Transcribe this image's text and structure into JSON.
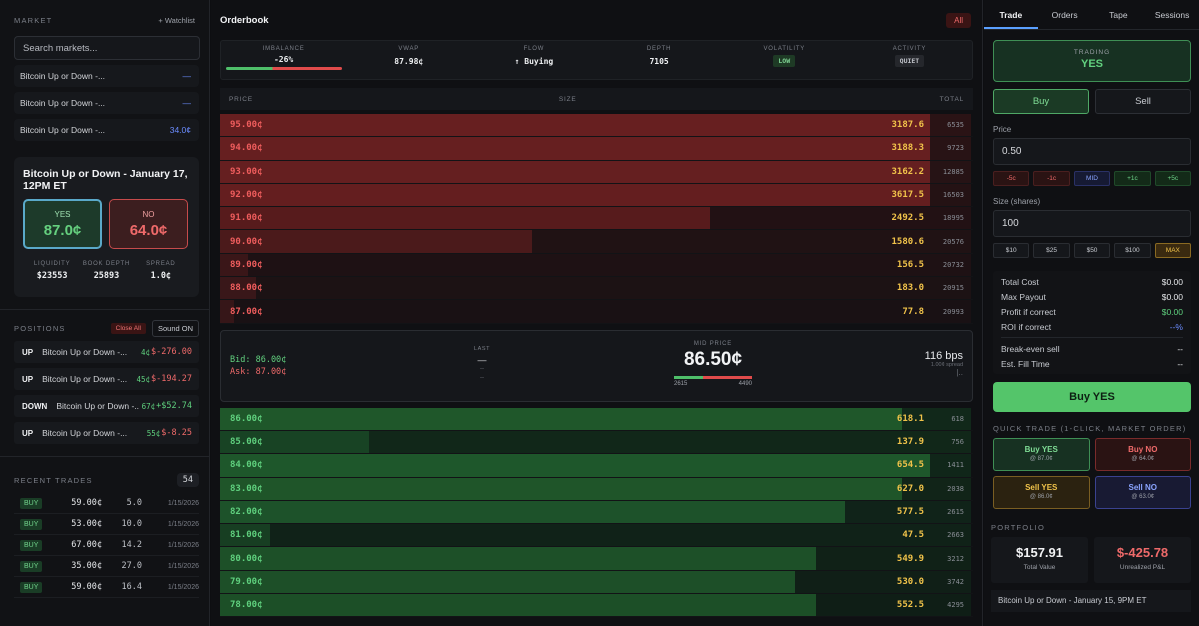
{
  "left": {
    "market_label": "MARKET",
    "watchlist": "+ Watchlist",
    "search_placeholder": "Search markets...",
    "markets": [
      {
        "name": "Bitcoin Up or Down -...",
        "price": "—"
      },
      {
        "name": "Bitcoin Up or Down -...",
        "price": "—"
      },
      {
        "name": "Bitcoin Up or Down -...",
        "price": "34.0¢"
      }
    ],
    "card": {
      "title": "Bitcoin Up or Down - January 17, 12PM ET",
      "yes_label": "YES",
      "yes_price": "87.0¢",
      "no_label": "NO",
      "no_price": "64.0¢",
      "stats": [
        {
          "k": "LIQUIDITY",
          "v": "$23553"
        },
        {
          "k": "BOOK DEPTH",
          "v": "25893"
        },
        {
          "k": "SPREAD",
          "v": "1.0¢"
        }
      ]
    },
    "positions_label": "POSITIONS",
    "close_all": "Close All",
    "sound": "Sound ON",
    "positions": [
      {
        "side": "UP",
        "name": "Bitcoin Up or Down -...",
        "price": "4¢",
        "pnl": "$-276.00",
        "neg": true
      },
      {
        "side": "UP",
        "name": "Bitcoin Up or Down -...",
        "price": "45¢",
        "pnl": "$-194.27",
        "neg": true
      },
      {
        "side": "DOWN",
        "name": "Bitcoin Up or Down -...",
        "price": "67¢",
        "pnl": "+$52.74",
        "neg": false
      },
      {
        "side": "UP",
        "name": "Bitcoin Up or Down -...",
        "price": "55¢",
        "pnl": "$-8.25",
        "neg": true
      }
    ],
    "recent_label": "RECENT TRADES",
    "recent_count": "54",
    "trades": [
      {
        "side": "BUY",
        "price": "59.00¢",
        "qty": "5.0",
        "date": "1/15/2026"
      },
      {
        "side": "BUY",
        "price": "53.00¢",
        "qty": "10.0",
        "date": "1/15/2026"
      },
      {
        "side": "BUY",
        "price": "67.00¢",
        "qty": "14.2",
        "date": "1/15/2026"
      },
      {
        "side": "BUY",
        "price": "35.00¢",
        "qty": "27.0",
        "date": "1/15/2026"
      },
      {
        "side": "BUY",
        "price": "59.00¢",
        "qty": "16.4",
        "date": "1/15/2026"
      }
    ]
  },
  "center": {
    "title": "Orderbook",
    "all": "All",
    "metrics": [
      {
        "k": "IMBALANCE",
        "v": "-26%"
      },
      {
        "k": "VWAP",
        "v": "87.98¢"
      },
      {
        "k": "FLOW",
        "v": "Buying"
      },
      {
        "k": "DEPTH",
        "v": "7105"
      },
      {
        "k": "VOLATILITY",
        "v": "LOW"
      },
      {
        "k": "ACTIVITY",
        "v": "QUIET"
      }
    ],
    "cols": {
      "price": "PRICE",
      "size": "SIZE",
      "total": "TOTAL"
    },
    "asks": [
      {
        "price": "95.00¢",
        "size": "3187.6",
        "total": "6535",
        "fill": 1.0
      },
      {
        "price": "94.00¢",
        "size": "3188.3",
        "total": "9723",
        "fill": 1.0
      },
      {
        "price": "93.00¢",
        "size": "3162.2",
        "total": "12885",
        "fill": 1.0
      },
      {
        "price": "92.00¢",
        "size": "3617.5",
        "total": "16503",
        "fill": 1.0
      },
      {
        "price": "91.00¢",
        "size": "2492.5",
        "total": "18995",
        "fill": 0.69
      },
      {
        "price": "90.00¢",
        "size": "1580.6",
        "total": "20576",
        "fill": 0.44
      },
      {
        "price": "89.00¢",
        "size": "156.5",
        "total": "20732",
        "fill": 0.04
      },
      {
        "price": "88.00¢",
        "size": "183.0",
        "total": "20915",
        "fill": 0.05
      },
      {
        "price": "87.00¢",
        "size": "77.8",
        "total": "20993",
        "fill": 0.02
      }
    ],
    "mid": {
      "bid": "Bid: 86.00¢",
      "ask": "Ask: 87.00¢",
      "last_label": "LAST",
      "last": "—",
      "last_sub1": "--",
      "last_sub2": "--",
      "mid_label": "MID PRICE",
      "mid": "86.50¢",
      "bid_depth": "2615",
      "ask_depth": "4490",
      "spread_bps": "116 bps",
      "spread_sub": "1.00¢ spread",
      "spread_tick": "|.."
    },
    "bids": [
      {
        "price": "86.00¢",
        "size": "618.1",
        "total": "618",
        "fill": 0.96
      },
      {
        "price": "85.00¢",
        "size": "137.9",
        "total": "756",
        "fill": 0.21
      },
      {
        "price": "84.00¢",
        "size": "654.5",
        "total": "1411",
        "fill": 1.0
      },
      {
        "price": "83.00¢",
        "size": "627.0",
        "total": "2038",
        "fill": 0.96
      },
      {
        "price": "82.00¢",
        "size": "577.5",
        "total": "2615",
        "fill": 0.88
      },
      {
        "price": "81.00¢",
        "size": "47.5",
        "total": "2663",
        "fill": 0.07
      },
      {
        "price": "80.00¢",
        "size": "549.9",
        "total": "3212",
        "fill": 0.84
      },
      {
        "price": "79.00¢",
        "size": "530.0",
        "total": "3742",
        "fill": 0.81
      },
      {
        "price": "78.00¢",
        "size": "552.5",
        "total": "4295",
        "fill": 0.84
      }
    ]
  },
  "right": {
    "tabs": [
      "Trade",
      "Orders",
      "Tape",
      "Sessions"
    ],
    "trading_label": "TRADING",
    "trading_value": "YES",
    "buy": "Buy",
    "sell": "Sell",
    "price_label": "Price",
    "price_value": "0.50",
    "price_chips": [
      "-5c",
      "-1c",
      "MID",
      "+1c",
      "+5c"
    ],
    "size_label": "Size (shares)",
    "size_value": "100",
    "size_chips": [
      "$10",
      "$25",
      "$50",
      "$100",
      "MAX"
    ],
    "costs": [
      {
        "k": "Total Cost",
        "v": "$0.00"
      },
      {
        "k": "Max Payout",
        "v": "$0.00"
      },
      {
        "k": "Profit if correct",
        "v": "$0.00"
      },
      {
        "k": "ROI if correct",
        "v": "--%"
      }
    ],
    "costs2": [
      {
        "k": "Break-even sell",
        "v": "--"
      },
      {
        "k": "Est. Fill Time",
        "v": "--"
      }
    ],
    "buy_yes": "Buy YES",
    "quick_label": "QUICK TRADE (1-CLICK, MARKET ORDER)",
    "quick": [
      {
        "a": "Buy YES",
        "b": "@ 87.0¢"
      },
      {
        "a": "Buy NO",
        "b": "@ 64.0¢"
      },
      {
        "a": "Sell YES",
        "b": "@ 86.0¢"
      },
      {
        "a": "Sell NO",
        "b": "@ 63.0¢"
      }
    ],
    "portfolio_label": "PORTFOLIO",
    "total_value": "$157.91",
    "total_value_label": "Total Value",
    "unrealized": "$-425.78",
    "unrealized_label": "Unrealized P&L",
    "portfolio_market": "Bitcoin Up or Down - January 15, 9PM ET"
  }
}
